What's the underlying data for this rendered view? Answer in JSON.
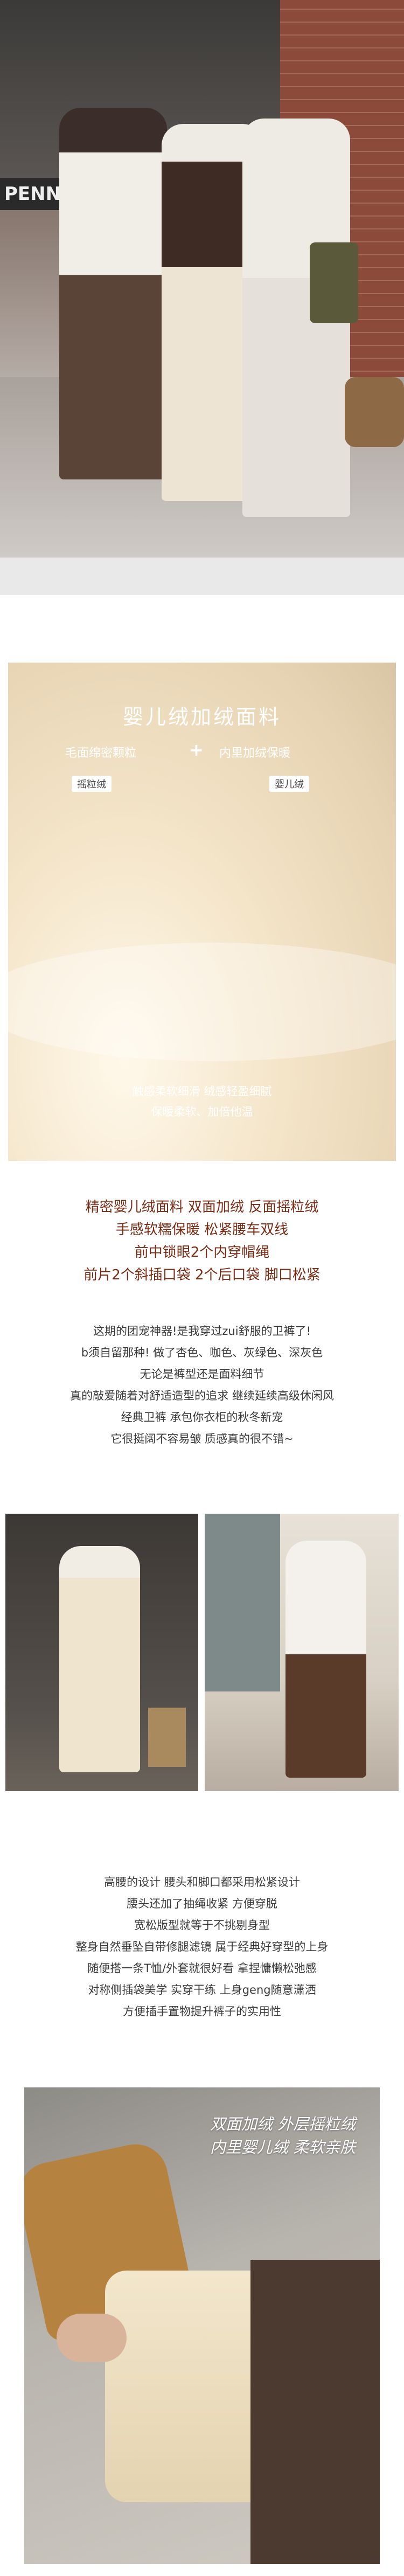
{
  "top_photo": {
    "sign_text": "PENN"
  },
  "fabric_panel": {
    "title": "婴儿绒加绒面料",
    "left_feature": "毛面绵密颗粒",
    "plus": "+",
    "right_feature": "内里加绒保暖",
    "tag_left": "摇粒绒",
    "tag_right": "婴儿绒",
    "bottom_line1": "触感柔软细滑 绒感轻盈细腻",
    "bottom_line2": "保暖柔软、加倍他温"
  },
  "features": [
    "精密婴儿绒面料 双面加绒 反面摇粒绒",
    "手感软糯保暖 松紧腰车双线",
    "前中锁眼2个内穿帽绳",
    "前片2个斜插口袋 2个后口袋 脚口松紧"
  ],
  "description": [
    "这期的团宠神器!是我穿过zui舒服的卫裤了!",
    "b须自留那种! 做了杏色、咖色、灰绿色、深灰色",
    "无论是裤型还是面料细节",
    "真的敲爱随着对舒适造型的追求 继续延续高级休闲风",
    "经典卫裤 承包你衣柜的秋冬新宠",
    "它很挺阔不容易皱 质感真的很不错~"
  ],
  "design_notes": [
    "高腰的设计 腰头和脚口都采用松紧设计",
    "腰头还加了抽绳收紧 方便穿脱",
    "宽松版型就等于不挑剔身型",
    "整身自然垂坠自带修腿滤镜 属于经典好穿型的上身",
    "随便搭一条T恤/外套就很好看 拿捏慵懒松弛感",
    "对称侧插袋美学 实穿干练 上身geng随意潇洒",
    "方便插手置物提升裤子的实用性"
  ],
  "detail_photo": {
    "line1": "双面加绒 外层摇粒绒",
    "line2": "内里婴儿绒 柔软亲肤"
  },
  "colors": {
    "accent_brown": "#7a2b14",
    "fabric_cream": "#f3e3c6"
  }
}
